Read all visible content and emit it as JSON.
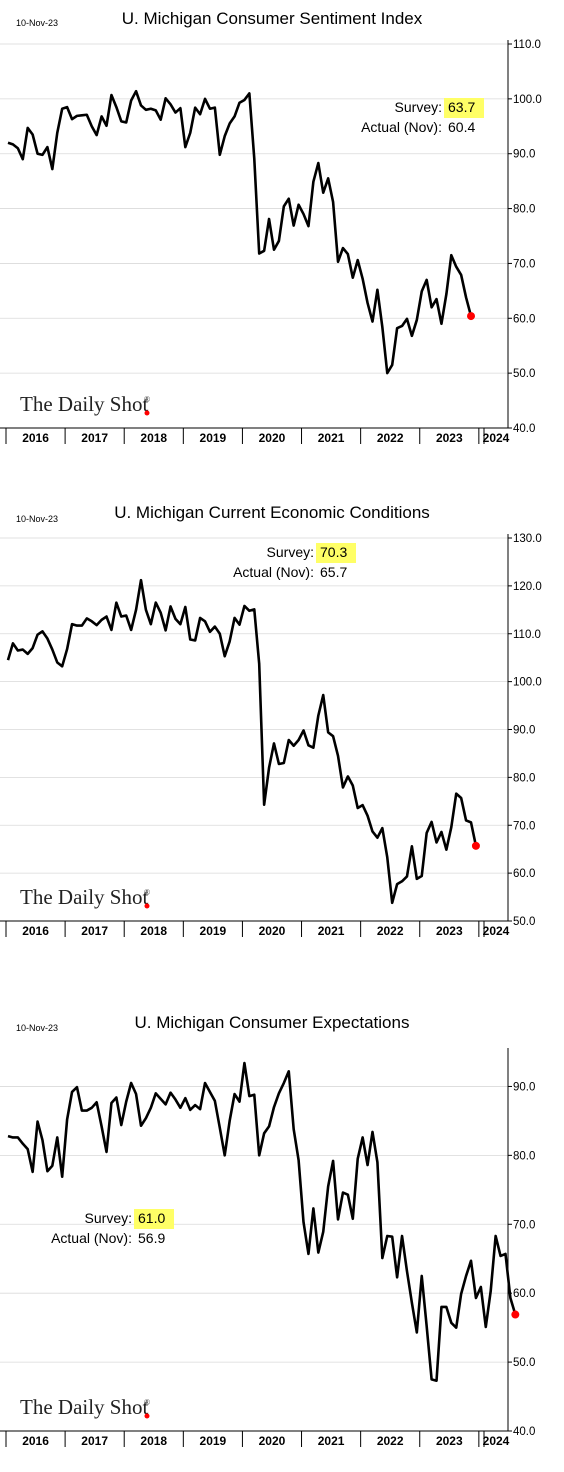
{
  "colors": {
    "line": "#000000",
    "marker": "#ff0000",
    "highlight": "#ffff66",
    "grid": "#d9d9d9"
  },
  "logo": {
    "text": "The Daily Shot",
    "reg": "®"
  },
  "chart_data": [
    {
      "type": "line",
      "date": "10-Nov-23",
      "title": "U. Michigan Consumer Sentiment Index",
      "ylim": [
        40,
        110
      ],
      "yticks": [
        "110.0",
        "100.0",
        "90.0",
        "80.0",
        "70.0",
        "60.0",
        "50.0",
        "40.0"
      ],
      "xlabels": [
        "2016",
        "2017",
        "2018",
        "2019",
        "2020",
        "2021",
        "2022",
        "2023",
        "2024"
      ],
      "grid": true,
      "annotation": {
        "survey_label": "Survey:",
        "survey_value": "63.7",
        "actual_label": "Actual (Nov):",
        "actual_value": "60.4"
      },
      "series": [
        {
          "x_start": "2016-01",
          "values": [
            92.0,
            91.7,
            91.0,
            89.0,
            94.7,
            93.5,
            90.0,
            89.8,
            91.2,
            87.2,
            93.8,
            98.2,
            98.5,
            96.3,
            96.9,
            97.0,
            97.1,
            95.0,
            93.4,
            96.8,
            95.1,
            100.7,
            98.5,
            95.9,
            95.7,
            99.7,
            101.4,
            98.8,
            98.0,
            98.2,
            97.9,
            96.2,
            100.1,
            99.0,
            97.5,
            98.3,
            91.2,
            93.8,
            98.4,
            97.2,
            100.0,
            98.2,
            98.4,
            89.8,
            93.2,
            95.5,
            96.8,
            99.3,
            99.8,
            101.0,
            89.1,
            71.8,
            72.3,
            78.1,
            72.5,
            74.1,
            80.4,
            81.8,
            76.9,
            80.7,
            79.0,
            76.8,
            84.9,
            88.3,
            82.9,
            85.5,
            81.2,
            70.3,
            72.8,
            71.7,
            67.4,
            70.6,
            67.2,
            62.8,
            59.4,
            65.2,
            58.4,
            50.0,
            51.5,
            58.2,
            58.6,
            59.9,
            56.8,
            59.7,
            64.9,
            67.0,
            62.0,
            63.5,
            59.0,
            64.4,
            71.5,
            69.4,
            67.9,
            63.8,
            60.4
          ]
        }
      ]
    },
    {
      "type": "line",
      "date": "10-Nov-23",
      "title": "U. Michigan Current Economic Conditions",
      "ylim": [
        50,
        130
      ],
      "yticks": [
        "130.0",
        "120.0",
        "110.0",
        "100.0",
        "90.0",
        "80.0",
        "70.0",
        "60.0",
        "50.0"
      ],
      "xlabels": [
        "2016",
        "2017",
        "2018",
        "2019",
        "2020",
        "2021",
        "2022",
        "2023",
        "2024"
      ],
      "grid": true,
      "annotation": {
        "survey_label": "Survey:",
        "survey_value": "70.3",
        "actual_label": "Actual (Nov):",
        "actual_value": "65.7"
      },
      "series": [
        {
          "x_start": "2016-01",
          "values": [
            104.5,
            108.0,
            106.5,
            106.7,
            105.8,
            107.0,
            109.8,
            110.5,
            109.0,
            106.7,
            104.0,
            103.2,
            106.8,
            112.0,
            111.7,
            111.7,
            113.2,
            112.6,
            111.8,
            112.9,
            113.6,
            110.8,
            116.5,
            113.6,
            113.8,
            110.8,
            115.0,
            121.2,
            115.0,
            112.0,
            116.5,
            114.4,
            110.7,
            115.7,
            113.1,
            112.0,
            115.6,
            108.8,
            108.6,
            113.3,
            112.6,
            110.4,
            111.5,
            110.0,
            105.3,
            108.4,
            113.3,
            111.9,
            115.8,
            114.8,
            115.1,
            103.7,
            74.3,
            82.0,
            87.1,
            82.8,
            83.0,
            87.8,
            86.6,
            87.8,
            89.8,
            86.7,
            86.2,
            92.9,
            97.2,
            89.4,
            88.6,
            84.5,
            77.9,
            80.2,
            78.3,
            73.6,
            74.2,
            72.0,
            68.7,
            67.4,
            69.4,
            63.3,
            53.8,
            57.7,
            58.3,
            59.3,
            65.6,
            58.8,
            59.4,
            68.4,
            70.7,
            66.4,
            68.6,
            64.9,
            69.6,
            76.6,
            75.7,
            71.0,
            70.6,
            65.7
          ]
        }
      ]
    },
    {
      "type": "line",
      "date": "10-Nov-23",
      "title": "U. Michigan Consumer Expectations",
      "ylim": [
        40,
        95
      ],
      "yticks": [
        "90.0",
        "80.0",
        "70.0",
        "60.0",
        "50.0",
        "40.0"
      ],
      "xlabels": [
        "2016",
        "2017",
        "2018",
        "2019",
        "2020",
        "2021",
        "2022",
        "2023",
        "2024"
      ],
      "grid": true,
      "annotation": {
        "survey_label": "Survey:",
        "survey_value": "61.0",
        "actual_label": "Actual (Nov):",
        "actual_value": "56.9"
      },
      "series": [
        {
          "x_start": "2016-01",
          "values": [
            82.8,
            82.6,
            82.6,
            81.7,
            80.9,
            77.6,
            84.9,
            82.2,
            77.7,
            78.5,
            82.6,
            76.9,
            85.2,
            89.2,
            89.9,
            86.5,
            86.5,
            86.9,
            87.7,
            84.2,
            80.5,
            87.6,
            88.4,
            84.4,
            87.8,
            90.5,
            88.9,
            84.3,
            85.4,
            86.9,
            89.0,
            88.2,
            87.4,
            89.1,
            88.1,
            86.9,
            88.3,
            86.6,
            87.3,
            86.7,
            90.5,
            89.2,
            87.9,
            84.0,
            80.0,
            85.0,
            88.9,
            87.8,
            93.4,
            88.6,
            88.8,
            80.0,
            83.2,
            84.2,
            87.0,
            89.0,
            90.5,
            92.2,
            83.8,
            79.3,
            70.3,
            65.7,
            72.3,
            65.9,
            68.9,
            75.5,
            79.2,
            70.7,
            74.6,
            74.3,
            70.8,
            79.5,
            82.6,
            78.6,
            83.4,
            79.0,
            65.1,
            68.3,
            68.2,
            62.3,
            68.3,
            63.2,
            58.6,
            54.3,
            62.5,
            55.2,
            47.5,
            47.3,
            58.0,
            58.0,
            55.7,
            55.0,
            59.9,
            62.5,
            64.7,
            59.3,
            60.9,
            55.1,
            60.3,
            68.3,
            65.4,
            65.7,
            59.3,
            56.9
          ]
        }
      ]
    }
  ]
}
